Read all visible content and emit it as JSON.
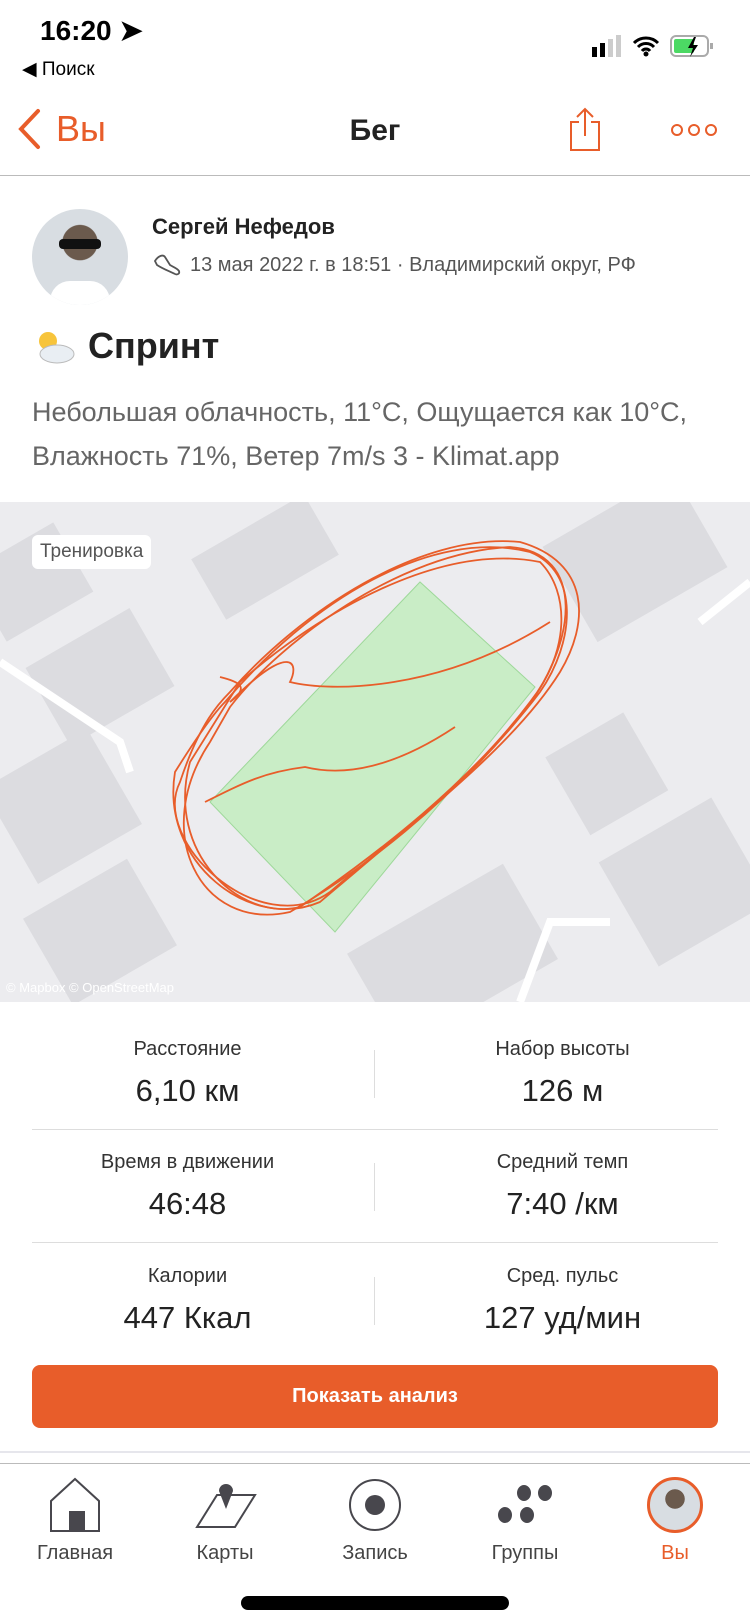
{
  "status_bar": {
    "time": "16:20",
    "back_app": "Поиск"
  },
  "nav": {
    "back_label": "Вы",
    "title": "Бег"
  },
  "activity": {
    "athlete": "Сергей Нефедов",
    "meta": "13 мая 2022 г. в 18:51 · Владимирский округ, РФ",
    "title": "Спринт",
    "description": "Небольшая облачность, 11°C, Ощущается как 10°C, Влажность 71%, Ветер 7m/s  3 - Klimat.app"
  },
  "map": {
    "badge": "Тренировка",
    "attribution": "© Mapbox © OpenStreetMap",
    "route_color": "#e85d2a"
  },
  "stats": [
    {
      "label": "Расстояние",
      "value": "6,10 км"
    },
    {
      "label": "Набор высоты",
      "value": "126 м"
    },
    {
      "label": "Время в движении",
      "value": "46:48"
    },
    {
      "label": "Средний темп",
      "value": "7:40 /км"
    },
    {
      "label": "Калории",
      "value": "447 Ккал"
    },
    {
      "label": "Сред. пульс",
      "value": "127 уд/мин"
    }
  ],
  "analysis_button": "Показать анализ",
  "tabs": [
    {
      "label": "Главная",
      "icon": "home-icon"
    },
    {
      "label": "Карты",
      "icon": "map-icon"
    },
    {
      "label": "Запись",
      "icon": "record-icon"
    },
    {
      "label": "Группы",
      "icon": "groups-icon"
    },
    {
      "label": "Вы",
      "icon": "avatar",
      "active": true
    }
  ],
  "accent": "#e85d2a"
}
